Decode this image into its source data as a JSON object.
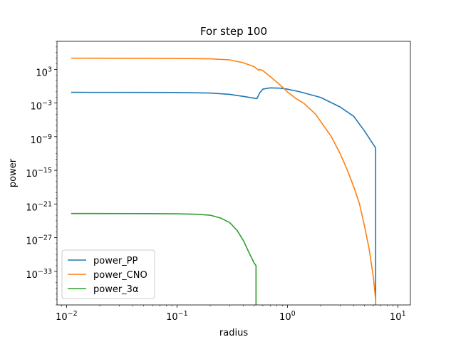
{
  "chart_data": {
    "type": "line",
    "title": "For step 100",
    "xlabel": "radius",
    "ylabel": "power",
    "xscale": "log",
    "yscale": "log",
    "xlim": [
      0.0082,
      13
    ],
    "ylim": [
      1e-39,
      100000000.0
    ],
    "grid": false,
    "legend_position": "lower-left",
    "x_ticks": [
      {
        "exp": -2,
        "label": "10",
        "sup": "−2"
      },
      {
        "exp": -1,
        "label": "10",
        "sup": "−1"
      },
      {
        "exp": 0,
        "label": "10",
        "sup": "0"
      },
      {
        "exp": 1,
        "label": "10",
        "sup": "1"
      }
    ],
    "y_ticks": [
      {
        "exp": 3,
        "label": "10",
        "sup": "3"
      },
      {
        "exp": -3,
        "label": "10",
        "sup": "−3"
      },
      {
        "exp": -9,
        "label": "10",
        "sup": "−9"
      },
      {
        "exp": -15,
        "label": "10",
        "sup": "−15"
      },
      {
        "exp": -21,
        "label": "10",
        "sup": "−21"
      },
      {
        "exp": -27,
        "label": "10",
        "sup": "−27"
      },
      {
        "exp": -33,
        "label": "10",
        "sup": "−33"
      }
    ],
    "series": [
      {
        "name": "power_PP",
        "color": "#1f77b4",
        "points": [
          [
            0.011,
            0.08
          ],
          [
            0.05,
            0.079
          ],
          [
            0.1,
            0.075
          ],
          [
            0.2,
            0.06
          ],
          [
            0.3,
            0.035
          ],
          [
            0.4,
            0.015
          ],
          [
            0.53,
            0.006
          ],
          [
            0.56,
            0.06
          ],
          [
            0.6,
            0.3
          ],
          [
            0.7,
            0.5
          ],
          [
            0.85,
            0.45
          ],
          [
            1.0,
            0.3
          ],
          [
            1.3,
            0.1
          ],
          [
            2.0,
            0.01
          ],
          [
            3.0,
            0.0002
          ],
          [
            4.0,
            4e-06
          ],
          [
            5.0,
            1e-08
          ],
          [
            6.0,
            4e-11
          ],
          [
            6.3,
            1e-11
          ],
          [
            6.3,
            1e-40
          ]
        ]
      },
      {
        "name": "power_CNO",
        "color": "#ff7f0e",
        "points": [
          [
            0.011,
            100000.0
          ],
          [
            0.05,
            95000.0
          ],
          [
            0.1,
            90000.0
          ],
          [
            0.2,
            75000.0
          ],
          [
            0.3,
            50000.0
          ],
          [
            0.4,
            15000.0
          ],
          [
            0.5,
            3000.0
          ],
          [
            0.55,
            700.0
          ],
          [
            0.56,
            1000.0
          ],
          [
            0.6,
            600.0
          ],
          [
            0.7,
            50
          ],
          [
            0.85,
            2.0
          ],
          [
            1.0,
            0.1
          ],
          [
            1.2,
            0.006
          ],
          [
            1.4,
            0.001
          ],
          [
            1.8,
            1e-05
          ],
          [
            2.5,
            1e-09
          ],
          [
            3.0,
            1e-12
          ],
          [
            3.5,
            1e-15
          ],
          [
            4.0,
            1e-18
          ],
          [
            4.5,
            1e-21
          ],
          [
            5.0,
            1e-25
          ],
          [
            5.5,
            1e-29
          ],
          [
            6.0,
            1e-34
          ],
          [
            6.3,
            1e-38
          ],
          [
            6.3,
            1e-40
          ]
        ]
      },
      {
        "name": "power_3α",
        "color": "#2ca02c",
        "points": [
          [
            0.011,
            2e-23
          ],
          [
            0.05,
            1.9e-23
          ],
          [
            0.1,
            1.8e-23
          ],
          [
            0.15,
            1.5e-23
          ],
          [
            0.2,
            1e-23
          ],
          [
            0.25,
            3e-24
          ],
          [
            0.3,
            5e-25
          ],
          [
            0.35,
            2e-26
          ],
          [
            0.4,
            3e-28
          ],
          [
            0.45,
            2e-30
          ],
          [
            0.5,
            3e-32
          ],
          [
            0.52,
            1e-32
          ],
          [
            0.52,
            1e-40
          ]
        ]
      }
    ]
  }
}
